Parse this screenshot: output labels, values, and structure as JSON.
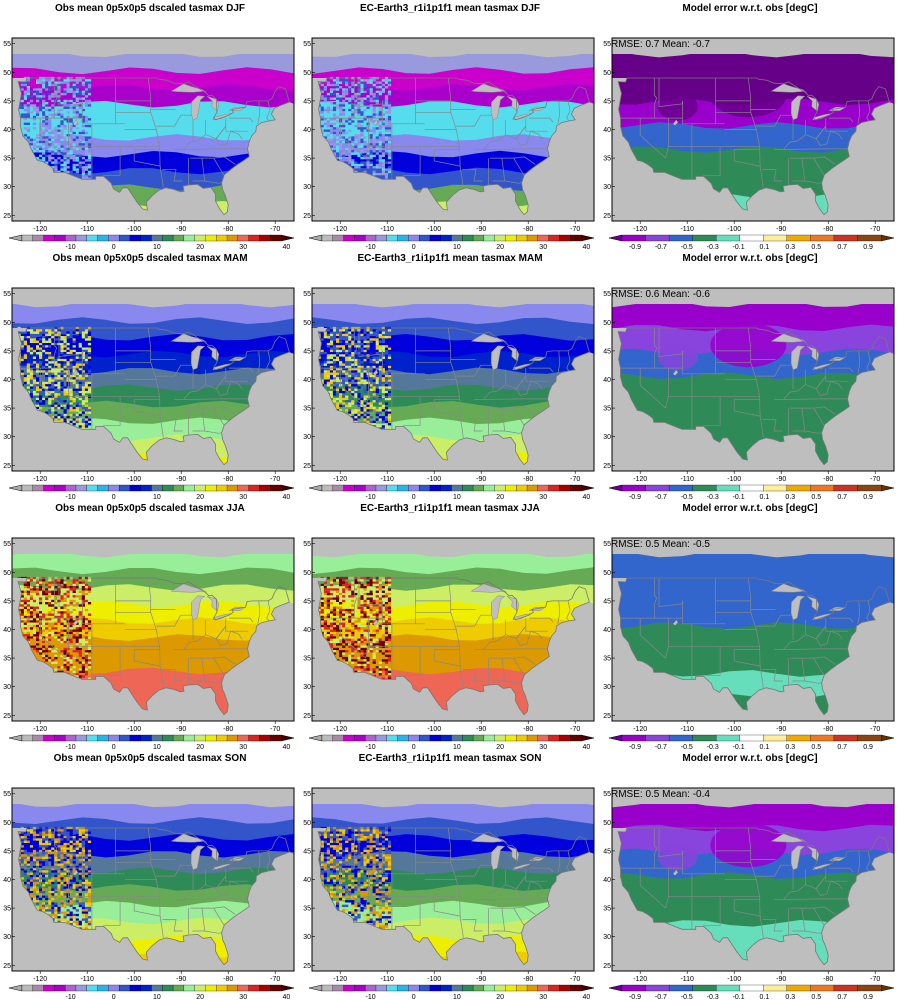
{
  "palettes": {
    "temp": [
      "#bbbbbb",
      "#aa88aa",
      "#cc00cc",
      "#aa00cc",
      "#b060d0",
      "#9999dd",
      "#55ddee",
      "#2ab5e8",
      "#8888ee",
      "#3355cc",
      "#0000dd",
      "#0022cc",
      "#557799",
      "#2e8b57",
      "#66aa55",
      "#99ee99",
      "#ccee66",
      "#eeee00",
      "#eecc00",
      "#dd9900",
      "#ee6655",
      "#dd2222",
      "#aa0000",
      "#660000"
    ],
    "err": [
      "#9900cc",
      "#8844dd",
      "#3366cc",
      "#2e8b57",
      "#66ddbb",
      "#ffffff",
      "#ffee99",
      "#eeaa00",
      "#ee7722",
      "#cc3322",
      "#8b4513"
    ]
  },
  "colorbars": {
    "temp": {
      "labels": [
        "-10",
        "0",
        "10",
        "20",
        "30",
        "40"
      ],
      "under_color": "#aaaaaa",
      "over_color": "#440000"
    },
    "err": {
      "labels": [
        "-0.9",
        "-0.7",
        "-0.5",
        "-0.3",
        "-0.1",
        "0.1",
        "0.3",
        "0.5",
        "0.7",
        "0.9"
      ],
      "under_color": "#660099",
      "over_color": "#663300"
    }
  },
  "axes": {
    "x_ticks": [
      "-120",
      "-110",
      "-100",
      "-90",
      "-80",
      "-70"
    ],
    "y_ticks": [
      "25",
      "30",
      "35",
      "40",
      "45",
      "50",
      "55"
    ]
  },
  "panels": [
    {
      "title": "Obs mean 0p5x0p5 dscaled tasmax DJF",
      "kind": "obs",
      "season": "DJF"
    },
    {
      "title": "EC-Earth3_r1i1p1f1 mean tasmax DJF",
      "kind": "model",
      "season": "DJF"
    },
    {
      "title": "Model error w.r.t. obs [degC]",
      "kind": "error",
      "season": "DJF",
      "stats": "RMSE: 0.7  Mean: -0.7"
    },
    {
      "title": "Obs mean 0p5x0p5 dscaled tasmax MAM",
      "kind": "obs",
      "season": "MAM"
    },
    {
      "title": "EC-Earth3_r1i1p1f1 mean tasmax MAM",
      "kind": "model",
      "season": "MAM"
    },
    {
      "title": "Model error w.r.t. obs [degC]",
      "kind": "error",
      "season": "MAM",
      "stats": "RMSE: 0.6  Mean: -0.6"
    },
    {
      "title": "Obs mean 0p5x0p5 dscaled tasmax JJA",
      "kind": "obs",
      "season": "JJA"
    },
    {
      "title": "EC-Earth3_r1i1p1f1 mean tasmax JJA",
      "kind": "model",
      "season": "JJA"
    },
    {
      "title": "Model error w.r.t. obs [degC]",
      "kind": "error",
      "season": "JJA",
      "stats": "RMSE: 0.5  Mean: -0.5"
    },
    {
      "title": "Obs mean 0p5x0p5 dscaled tasmax SON",
      "kind": "obs",
      "season": "SON"
    },
    {
      "title": "EC-Earth3_r1i1p1f1 mean tasmax SON",
      "kind": "model",
      "season": "SON"
    },
    {
      "title": "Model error w.r.t. obs [degC]",
      "kind": "error",
      "season": "SON",
      "stats": "RMSE: 0.5  Mean: -0.4"
    }
  ],
  "season_fields": {
    "DJF": {
      "band_colors": [
        "#9999dd",
        "#cc00cc",
        "#aa00cc",
        "#55ddee",
        "#55ddee",
        "#8888ee",
        "#0000dd",
        "#3355cc",
        "#66aa55",
        "#ccee66"
      ],
      "west_colors": [
        "#9999dd",
        "#55ddee",
        "#8888ee",
        "#3355cc"
      ],
      "err_band_colors": [
        "#660088",
        "#660088",
        "#9900cc",
        "#3366cc",
        "#2e8b57",
        "#2e8b57",
        "#66ddbb"
      ]
    },
    "MAM": {
      "band_colors": [
        "#8888ee",
        "#3355cc",
        "#0000dd",
        "#0022cc",
        "#557799",
        "#2e8b57",
        "#66aa55",
        "#99ee99",
        "#ccee66",
        "#eeee00"
      ],
      "west_colors": [
        "#0000dd",
        "#3355cc",
        "#ccee66",
        "#eecc00"
      ],
      "err_band_colors": [
        "#9900cc",
        "#8844dd",
        "#3366cc",
        "#2e8b57",
        "#2e8b57",
        "#2e8b57",
        "#2e8b57"
      ]
    },
    "JJA": {
      "band_colors": [
        "#99ee99",
        "#66aa55",
        "#ccee66",
        "#eeee00",
        "#eecc00",
        "#dd9900",
        "#dd9900",
        "#ee6655",
        "#ee6655",
        "#ee6655"
      ],
      "west_colors": [
        "#ccee66",
        "#dd9900",
        "#dd2222",
        "#660000"
      ],
      "err_band_colors": [
        "#3366cc",
        "#3366cc",
        "#3366cc",
        "#2e8b57",
        "#2e8b57",
        "#66ddbb",
        "#2e8b57"
      ]
    },
    "SON": {
      "band_colors": [
        "#8888ee",
        "#3355cc",
        "#0000dd",
        "#557799",
        "#2e8b57",
        "#66aa55",
        "#99ee99",
        "#ccee66",
        "#eeee00",
        "#eecc00"
      ],
      "west_colors": [
        "#0000dd",
        "#3355cc",
        "#eecc00",
        "#dd9900"
      ],
      "err_band_colors": [
        "#9900cc",
        "#8844dd",
        "#3366cc",
        "#2e8b57",
        "#2e8b57",
        "#66ddbb",
        "#66ddbb"
      ]
    }
  }
}
